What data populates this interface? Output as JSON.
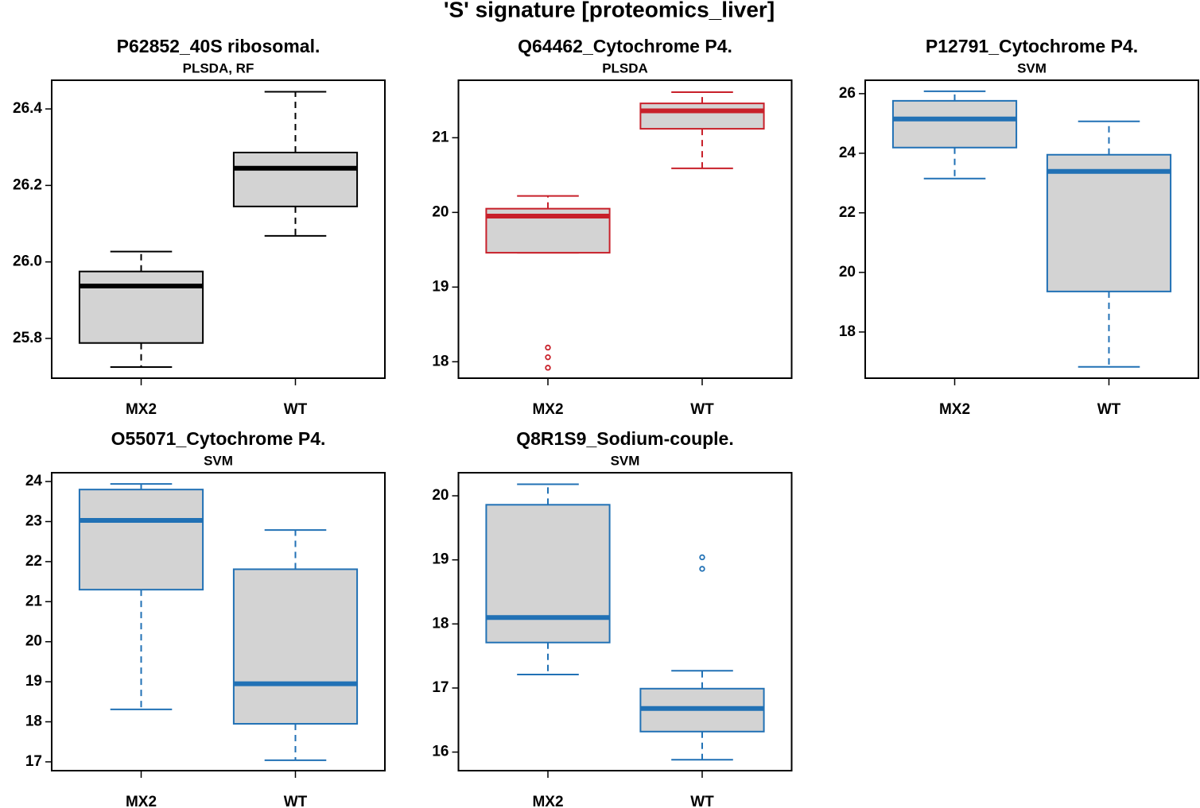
{
  "title": "'S' signature [proteomics_liver]",
  "chart_data": [
    {
      "type": "box",
      "title": "P62852_40S ribosomal.",
      "subtitle": "PLSDA, RF",
      "color": "#000000",
      "categories": [
        "MX2",
        "WT"
      ],
      "ylim": [
        25.696,
        26.475
      ],
      "yticks": [
        25.8,
        {
          "value": 26,
          "label": "26.0"
        },
        26.2,
        26.4
      ],
      "boxes": [
        {
          "whislo": 25.725,
          "q1": 25.788,
          "med": 25.937,
          "q3": 25.975,
          "whishi": 26.027
        },
        {
          "whislo": 26.068,
          "q1": 26.145,
          "med": 26.245,
          "q3": 26.286,
          "whishi": 26.445
        }
      ]
    },
    {
      "type": "box",
      "title": "Q64462_Cytochrome P4.",
      "subtitle": "PLSDA",
      "color": "#c8202a",
      "categories": [
        "MX2",
        "WT"
      ],
      "ylim": [
        17.78,
        21.77
      ],
      "yticks": [
        18,
        19,
        20,
        21
      ],
      "boxes": [
        {
          "whislo": 19.46,
          "q1": 19.46,
          "med": 19.95,
          "q3": 20.05,
          "whishi": 20.22,
          "fliers": [
            18.19,
            18.06,
            17.92
          ]
        },
        {
          "whislo": 20.59,
          "q1": 21.12,
          "med": 21.36,
          "q3": 21.46,
          "whishi": 21.61
        }
      ]
    },
    {
      "type": "box",
      "title": "P12791_Cytochrome P4.",
      "subtitle": "SVM",
      "color": "#2171b5",
      "categories": [
        "MX2",
        "WT"
      ],
      "ylim": [
        16.45,
        26.45
      ],
      "yticks": [
        18,
        20,
        22,
        24,
        26
      ],
      "boxes": [
        {
          "whislo": 23.15,
          "q1": 24.19,
          "med": 25.15,
          "q3": 25.76,
          "whishi": 26.08
        },
        {
          "whislo": 16.83,
          "q1": 19.36,
          "med": 23.39,
          "q3": 23.95,
          "whishi": 25.07
        }
      ]
    },
    {
      "type": "box",
      "title": "O55071_Cytochrome P4.",
      "subtitle": "SVM",
      "color": "#2171b5",
      "categories": [
        "MX2",
        "WT"
      ],
      "ylim": [
        16.78,
        24.22
      ],
      "yticks": [
        17,
        18,
        19,
        20,
        21,
        22,
        23,
        24
      ],
      "boxes": [
        {
          "whislo": 18.31,
          "q1": 21.3,
          "med": 23.03,
          "q3": 23.8,
          "whishi": 23.94
        },
        {
          "whislo": 17.04,
          "q1": 17.95,
          "med": 18.95,
          "q3": 21.81,
          "whishi": 22.79
        }
      ]
    },
    {
      "type": "box",
      "title": "Q8R1S9_Sodium-couple.",
      "subtitle": "SVM",
      "color": "#2171b5",
      "categories": [
        "MX2",
        "WT"
      ],
      "ylim": [
        15.71,
        20.36
      ],
      "yticks": [
        16,
        17,
        18,
        19,
        20
      ],
      "boxes": [
        {
          "whislo": 17.21,
          "q1": 17.71,
          "med": 18.1,
          "q3": 19.86,
          "whishi": 20.18
        },
        {
          "whislo": 15.88,
          "q1": 16.32,
          "med": 16.68,
          "q3": 16.99,
          "whishi": 17.27,
          "fliers": [
            19.04,
            18.86
          ]
        }
      ]
    }
  ]
}
